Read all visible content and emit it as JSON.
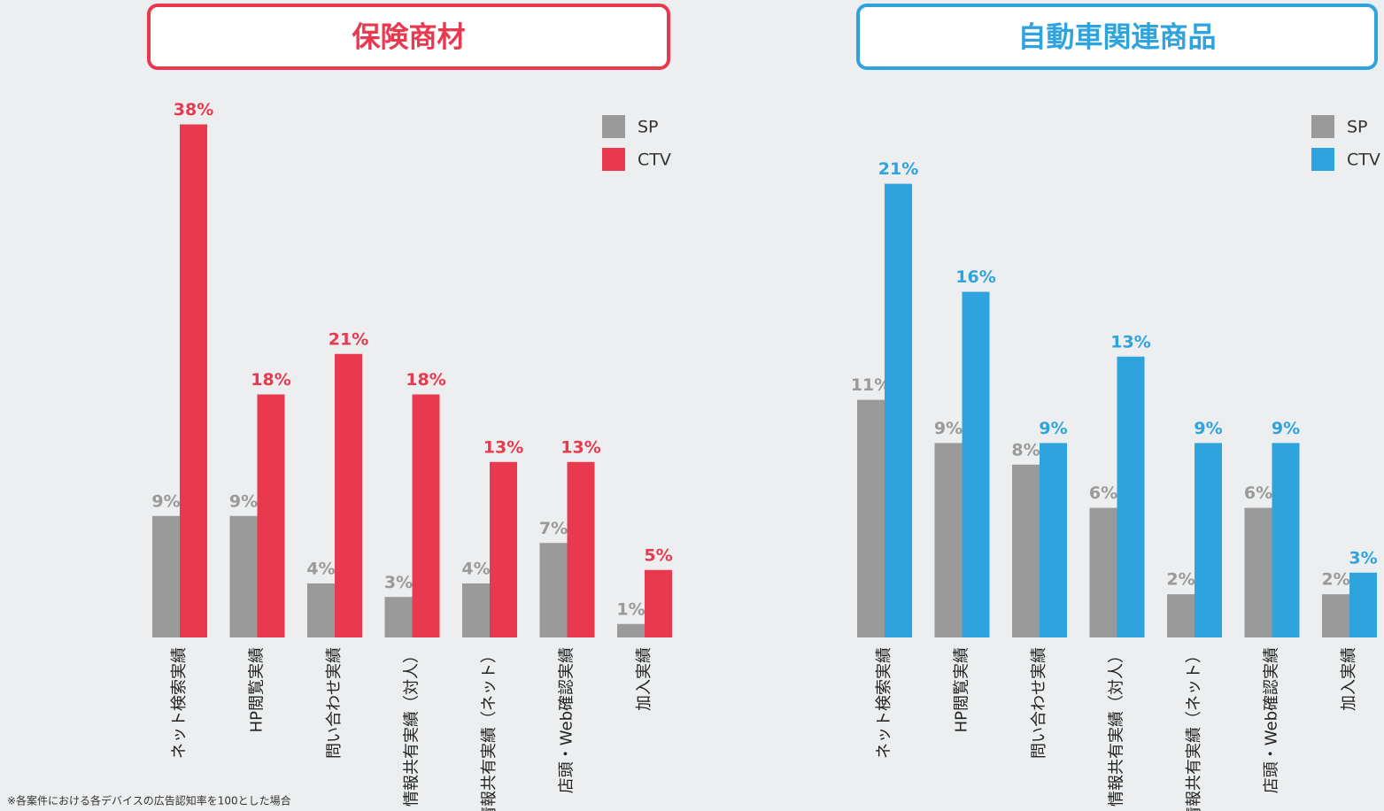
{
  "chart_data": [
    {
      "type": "bar",
      "title": "保険商材",
      "categories": [
        "ネット検索実績",
        "HP閲覧実績",
        "問い合わせ実績",
        "情報共有実績（対人）",
        "情報共有実績（ネット）",
        "店頭・Web確認実績",
        "加入実績"
      ],
      "series": [
        {
          "name": "SP",
          "color": "#999a99",
          "values": [
            9,
            9,
            4,
            3,
            4,
            7,
            1
          ],
          "value_labels": [
            "9%",
            "9%",
            "4%",
            "3%",
            "4%",
            "7%",
            "1%"
          ]
        },
        {
          "name": "CTV",
          "color": "#e8394f",
          "values": [
            38,
            18,
            21,
            18,
            13,
            13,
            5
          ],
          "value_labels": [
            "38%",
            "18%",
            "21%",
            "18%",
            "13%",
            "13%",
            "5%"
          ]
        }
      ],
      "ylim": [
        0,
        40
      ],
      "legend": "top-right",
      "frame_color": "#e8394f"
    },
    {
      "type": "bar",
      "title": "自動車関連商品",
      "categories": [
        "ネット検索実績",
        "HP閲覧実績",
        "問い合わせ実績",
        "情報共有実績（対人）",
        "情報共有実績（ネット）",
        "店頭・Web確認実績",
        "加入実績"
      ],
      "series": [
        {
          "name": "SP",
          "color": "#999a99",
          "values": [
            11,
            9,
            8,
            6,
            2,
            6,
            2
          ],
          "value_labels": [
            "11%",
            "9%",
            "8%",
            "6%",
            "2%",
            "6%",
            "2%"
          ]
        },
        {
          "name": "CTV",
          "color": "#2fa3de",
          "values": [
            21,
            16,
            9,
            13,
            9,
            9,
            3
          ],
          "value_labels": [
            "21%",
            "16%",
            "9%",
            "13%",
            "9%",
            "9%",
            "3%"
          ]
        }
      ],
      "ylim": [
        0,
        25
      ],
      "legend": "top-right",
      "frame_color": "#2fa3de"
    }
  ],
  "footnote": "※各案件における各デバイスの広告認知率を100とした場合"
}
